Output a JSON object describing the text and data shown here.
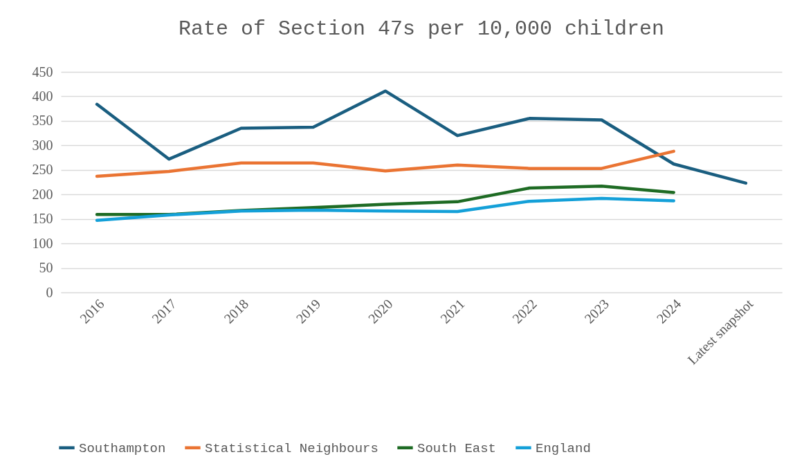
{
  "chart_data": {
    "type": "line",
    "title": "Rate of Section 47s per 10,000 children",
    "categories": [
      "2016",
      "2017",
      "2018",
      "2019",
      "2020",
      "2021",
      "2022",
      "2023",
      "2024",
      "Latest snapshot"
    ],
    "series": [
      {
        "name": "Southampton",
        "color": "#1a5e80",
        "values": [
          384,
          272,
          335,
          337,
          411,
          320,
          355,
          352,
          262,
          223
        ]
      },
      {
        "name": "Statistical Neighbours",
        "color": "#ea7433",
        "values": [
          237,
          247,
          264,
          264,
          248,
          260,
          253,
          253,
          288,
          null
        ]
      },
      {
        "name": "South East",
        "color": "#1e6b24",
        "values": [
          159,
          159,
          167,
          173,
          180,
          185,
          213,
          217,
          204,
          null
        ]
      },
      {
        "name": "England",
        "color": "#14a0d8",
        "values": [
          147,
          158,
          166,
          168,
          166,
          165,
          186,
          192,
          187,
          null
        ]
      }
    ],
    "ylim": [
      0,
      450
    ],
    "yticks": [
      0,
      50,
      100,
      150,
      200,
      250,
      300,
      350,
      400,
      450
    ],
    "grid": "y",
    "legend": "bottom",
    "marker": "none",
    "line_style": "solid"
  }
}
